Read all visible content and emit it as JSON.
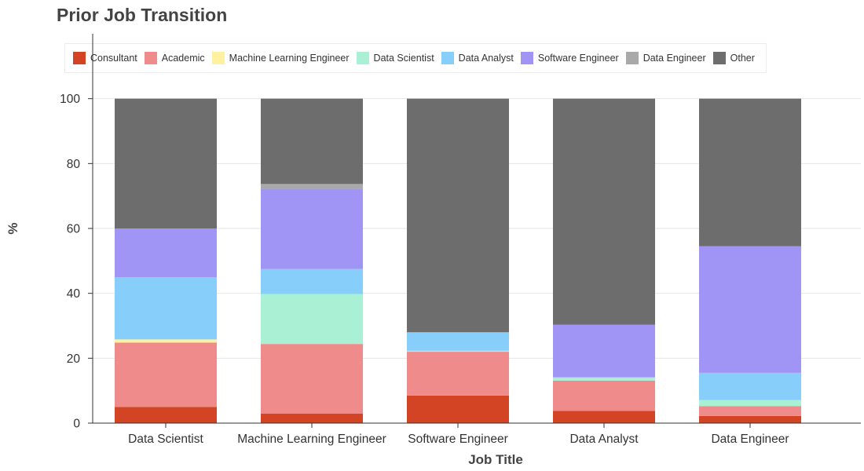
{
  "chart_data": {
    "type": "bar",
    "stacked": true,
    "title": "Prior Job Transition",
    "xlabel": "Job Title",
    "ylabel": "%",
    "ylim": [
      0,
      120
    ],
    "yticks": [
      0,
      20,
      40,
      60,
      80,
      100
    ],
    "grid": true,
    "legend_position": "top-left",
    "categories": [
      "Data Scientist",
      "Machine Learning Engineer",
      "Software Engineer",
      "Data Analyst",
      "Data Engineer"
    ],
    "series": [
      {
        "name": "Consultant",
        "color": "#d24423",
        "values": [
          5.0,
          2.9,
          8.5,
          3.8,
          2.2
        ]
      },
      {
        "name": "Academic",
        "color": "#f08b8b",
        "values": [
          19.8,
          21.5,
          13.5,
          9.3,
          3.0
        ]
      },
      {
        "name": "Machine Learning Engineer",
        "color": "#fff1a0",
        "values": [
          1.0,
          0.0,
          0.0,
          0.0,
          0.0
        ]
      },
      {
        "name": "Data Scientist",
        "color": "#aaf0d4",
        "values": [
          0.0,
          15.4,
          0.3,
          1.0,
          1.9
        ]
      },
      {
        "name": "Data Analyst",
        "color": "#87cefa",
        "values": [
          19.2,
          7.7,
          5.7,
          0.0,
          8.4
        ]
      },
      {
        "name": "Software Engineer",
        "color": "#a095f5",
        "values": [
          15.0,
          24.7,
          0.0,
          16.2,
          39.0
        ]
      },
      {
        "name": "Data Engineer",
        "color": "#a9a9a9",
        "values": [
          0.0,
          1.5,
          0.0,
          0.0,
          0.0
        ]
      },
      {
        "name": "Other",
        "color": "#6d6d6d",
        "values": [
          40.0,
          26.3,
          72.0,
          69.7,
          45.5
        ]
      }
    ]
  }
}
